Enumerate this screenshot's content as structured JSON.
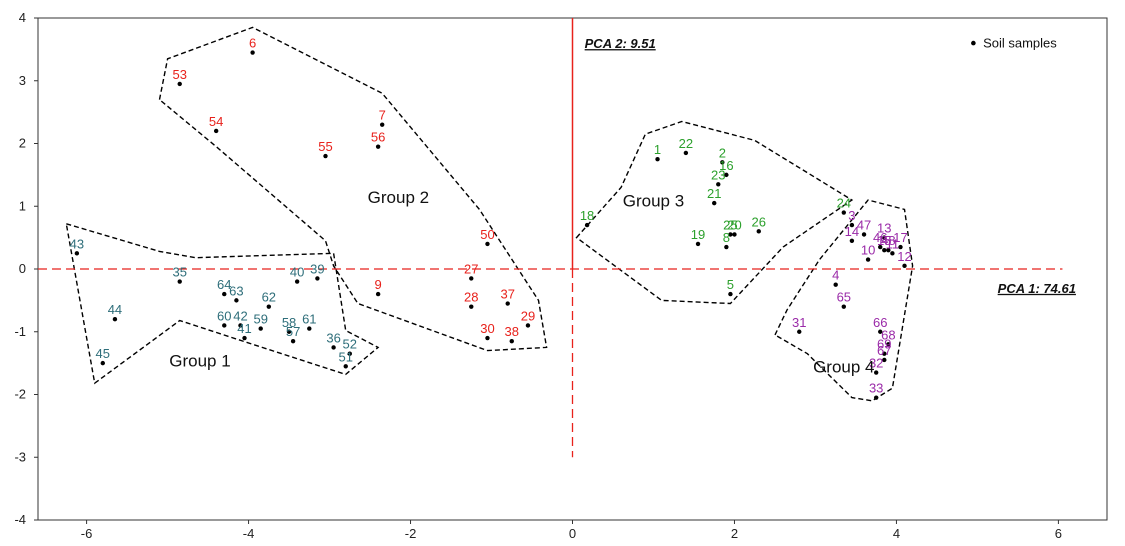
{
  "chart_data": {
    "type": "scatter",
    "xlim": [
      -6.6,
      6.6
    ],
    "ylim": [
      -4,
      4
    ],
    "xticks": [
      -6,
      -4,
      -2,
      0,
      2,
      4,
      6
    ],
    "yticks": [
      -4,
      -3,
      -2,
      -1,
      0,
      1,
      2,
      3,
      4
    ],
    "axis_labels": {
      "pc1": "PCA 1: 74.61",
      "pc2": "PCA 2: 9.51"
    },
    "legend": {
      "label": "Soil samples",
      "position": "top-right"
    },
    "colors": {
      "group1": "#2e6e7a",
      "group2": "#e8221c",
      "group3": "#2ca02c",
      "group4": "#9a2aa8",
      "axes": "#e8221c",
      "points": "#000000"
    },
    "groups": [
      {
        "label": "Group 1",
        "color_key": "group1",
        "hull": [
          [
            -6.25,
            0.72
          ],
          [
            -5.1,
            0.28
          ],
          [
            -4.65,
            0.18
          ],
          [
            -2.95,
            0.25
          ],
          [
            -2.8,
            -0.98
          ],
          [
            -2.4,
            -1.25
          ],
          [
            -2.8,
            -1.68
          ],
          [
            -3.95,
            -1.2
          ],
          [
            -4.85,
            -0.82
          ],
          [
            -5.9,
            -1.82
          ]
        ],
        "points": [
          {
            "id": "43",
            "x": -6.12,
            "y": 0.25
          },
          {
            "id": "35",
            "x": -4.85,
            "y": -0.2
          },
          {
            "id": "44",
            "x": -5.65,
            "y": -0.8
          },
          {
            "id": "45",
            "x": -5.8,
            "y": -1.5
          },
          {
            "id": "64",
            "x": -4.3,
            "y": -0.4
          },
          {
            "id": "63",
            "x": -4.15,
            "y": -0.5
          },
          {
            "id": "60",
            "x": -4.3,
            "y": -0.9
          },
          {
            "id": "42",
            "x": -4.1,
            "y": -0.9
          },
          {
            "id": "41",
            "x": -4.05,
            "y": -1.1
          },
          {
            "id": "62",
            "x": -3.75,
            "y": -0.6
          },
          {
            "id": "59",
            "x": -3.85,
            "y": -0.95
          },
          {
            "id": "58",
            "x": -3.5,
            "y": -1.0
          },
          {
            "id": "61",
            "x": -3.25,
            "y": -0.95
          },
          {
            "id": "57",
            "x": -3.45,
            "y": -1.15
          },
          {
            "id": "40",
            "x": -3.4,
            "y": -0.2
          },
          {
            "id": "39",
            "x": -3.15,
            "y": -0.15
          },
          {
            "id": "36",
            "x": -2.95,
            "y": -1.25
          },
          {
            "id": "52",
            "x": -2.75,
            "y": -1.35
          },
          {
            "id": "51",
            "x": -2.8,
            "y": -1.55
          }
        ]
      },
      {
        "label": "Group 2",
        "color_key": "group2",
        "hull": [
          [
            -5.1,
            2.7
          ],
          [
            -5.0,
            3.35
          ],
          [
            -3.95,
            3.85
          ],
          [
            -2.35,
            2.8
          ],
          [
            -1.15,
            0.95
          ],
          [
            -0.42,
            -0.5
          ],
          [
            -0.32,
            -1.25
          ],
          [
            -1.05,
            -1.3
          ],
          [
            -2.65,
            -0.55
          ],
          [
            -2.95,
            0.05
          ],
          [
            -3.05,
            0.45
          ],
          [
            -4.4,
            1.95
          ]
        ],
        "points": [
          {
            "id": "6",
            "x": -3.95,
            "y": 3.45
          },
          {
            "id": "53",
            "x": -4.85,
            "y": 2.95
          },
          {
            "id": "54",
            "x": -4.4,
            "y": 2.2
          },
          {
            "id": "7",
            "x": -2.35,
            "y": 2.3
          },
          {
            "id": "56",
            "x": -2.4,
            "y": 1.95
          },
          {
            "id": "55",
            "x": -3.05,
            "y": 1.8
          },
          {
            "id": "50",
            "x": -1.05,
            "y": 0.4
          },
          {
            "id": "9",
            "x": -2.4,
            "y": -0.4
          },
          {
            "id": "27",
            "x": -1.25,
            "y": -0.15
          },
          {
            "id": "28",
            "x": -1.25,
            "y": -0.6
          },
          {
            "id": "37",
            "x": -0.8,
            "y": -0.55
          },
          {
            "id": "29",
            "x": -0.55,
            "y": -0.9
          },
          {
            "id": "30",
            "x": -1.05,
            "y": -1.1
          },
          {
            "id": "38",
            "x": -0.75,
            "y": -1.15
          }
        ]
      },
      {
        "label": "Group 3",
        "color_key": "group3",
        "hull": [
          [
            0.05,
            0.5
          ],
          [
            0.6,
            1.3
          ],
          [
            0.9,
            2.15
          ],
          [
            1.35,
            2.35
          ],
          [
            2.25,
            2.05
          ],
          [
            3.45,
            1.1
          ],
          [
            2.6,
            0.35
          ],
          [
            1.95,
            -0.55
          ],
          [
            1.1,
            -0.5
          ]
        ],
        "points": [
          {
            "id": "18",
            "x": 0.18,
            "y": 0.7
          },
          {
            "id": "1",
            "x": 1.05,
            "y": 1.75
          },
          {
            "id": "22",
            "x": 1.4,
            "y": 1.85
          },
          {
            "id": "2",
            "x": 1.85,
            "y": 1.7
          },
          {
            "id": "16",
            "x": 1.9,
            "y": 1.5
          },
          {
            "id": "23",
            "x": 1.8,
            "y": 1.35
          },
          {
            "id": "21",
            "x": 1.75,
            "y": 1.05
          },
          {
            "id": "19",
            "x": 1.55,
            "y": 0.4
          },
          {
            "id": "8",
            "x": 1.9,
            "y": 0.35
          },
          {
            "id": "25",
            "x": 1.95,
            "y": 0.55
          },
          {
            "id": "20",
            "x": 2.0,
            "y": 0.55
          },
          {
            "id": "26",
            "x": 2.3,
            "y": 0.6
          },
          {
            "id": "24",
            "x": 3.35,
            "y": 0.9
          },
          {
            "id": "5",
            "x": 1.95,
            "y": -0.4
          }
        ]
      },
      {
        "label": "Group 4",
        "color_key": "group4",
        "hull": [
          [
            2.5,
            -1.05
          ],
          [
            2.65,
            -0.65
          ],
          [
            3.05,
            0.15
          ],
          [
            3.65,
            1.1
          ],
          [
            4.1,
            0.95
          ],
          [
            4.2,
            0.05
          ],
          [
            3.95,
            -1.9
          ],
          [
            3.7,
            -2.1
          ],
          [
            3.45,
            -2.05
          ],
          [
            2.9,
            -1.35
          ]
        ],
        "points": [
          {
            "id": "3",
            "x": 3.45,
            "y": 0.7
          },
          {
            "id": "14",
            "x": 3.45,
            "y": 0.45
          },
          {
            "id": "47",
            "x": 3.6,
            "y": 0.55
          },
          {
            "id": "13",
            "x": 3.85,
            "y": 0.5
          },
          {
            "id": "46",
            "x": 3.8,
            "y": 0.35
          },
          {
            "id": "15",
            "x": 3.85,
            "y": 0.3
          },
          {
            "id": "48",
            "x": 3.9,
            "y": 0.3
          },
          {
            "id": "11",
            "x": 3.95,
            "y": 0.25
          },
          {
            "id": "17",
            "x": 4.05,
            "y": 0.35
          },
          {
            "id": "10",
            "x": 3.65,
            "y": 0.15
          },
          {
            "id": "12",
            "x": 4.1,
            "y": 0.05
          },
          {
            "id": "4",
            "x": 3.25,
            "y": -0.25
          },
          {
            "id": "65",
            "x": 3.35,
            "y": -0.6
          },
          {
            "id": "31",
            "x": 2.8,
            "y": -1.0
          },
          {
            "id": "66",
            "x": 3.8,
            "y": -1.0
          },
          {
            "id": "68",
            "x": 3.9,
            "y": -1.2
          },
          {
            "id": "69",
            "x": 3.85,
            "y": -1.35
          },
          {
            "id": "67",
            "x": 3.85,
            "y": -1.45
          },
          {
            "id": "32",
            "x": 3.75,
            "y": -1.65
          },
          {
            "id": "33",
            "x": 3.75,
            "y": -2.05
          }
        ]
      }
    ]
  }
}
